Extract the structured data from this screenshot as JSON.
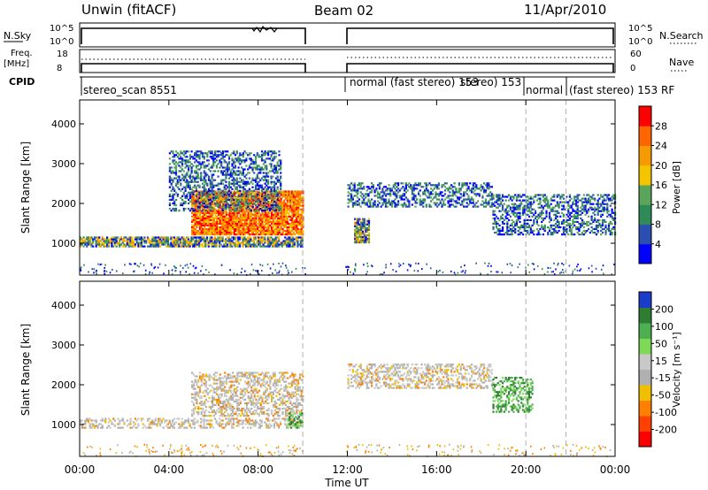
{
  "header": {
    "station": "Unwin (fitACF)",
    "beam": "Beam 02",
    "date": "11/Apr/2010"
  },
  "top_panels": {
    "nsky_label": "N.Sky",
    "nsky_ticks": [
      "10^5",
      "10^0"
    ],
    "nsearch_label": "N.Search",
    "nsearch_ticks": [
      "10^5",
      "10^0"
    ],
    "freq_label_1": "Freq.",
    "freq_label_2": "[MHz]",
    "freq_ticks": [
      "18",
      "8"
    ],
    "nave_label": "Nave",
    "nave_ticks": [
      "60",
      "0"
    ],
    "cpid_label": "CPID"
  },
  "cpid_segments": [
    {
      "label": "stereo_scan 8551"
    },
    {
      "label": "normal (fast stereo) 153"
    },
    {
      "label": "stereo) 153"
    },
    {
      "label": "normal"
    },
    {
      "label": "(fast stereo) 153 RF"
    }
  ],
  "colors": {
    "power": [
      "#0000ff",
      "#2a4fb0",
      "#2e8b57",
      "#5aa55a",
      "#f5c400",
      "#f59a00",
      "#ff6600",
      "#ff0000"
    ],
    "velocity": [
      "#1a3cc8",
      "#2e7d32",
      "#4caf50",
      "#7ed957",
      "#c8c8c8",
      "#b0b0b0",
      "#f0c000",
      "#ff8000",
      "#ff4000",
      "#ff0000"
    ]
  },
  "chart_data": [
    {
      "type": "heatmap",
      "title": "Power",
      "xlabel": "Time UT",
      "ylabel": "Slant Range [km]",
      "x_range_hours": [
        0,
        24
      ],
      "x_ticks": [
        "00:00",
        "04:00",
        "08:00",
        "12:00",
        "16:00",
        "20:00",
        "00:00"
      ],
      "ylim": [
        200,
        4600
      ],
      "y_ticks": [
        1000,
        2000,
        3000,
        4000
      ],
      "colorbar_label": "Power [dB]",
      "colorbar_ticks": [
        "28",
        "24",
        "20",
        "16",
        "12",
        "8",
        "4"
      ],
      "data_gap_hours": [
        10.1,
        11.9
      ],
      "mode_change_hours": [
        10.0,
        20.0,
        21.8
      ],
      "echo_bands": [
        {
          "t_start": 0.0,
          "t_end": 10.0,
          "range_start": 900,
          "range_end": 1150,
          "level": "medium"
        },
        {
          "t_start": 5.0,
          "t_end": 10.0,
          "range_start": 1200,
          "range_end": 2300,
          "level": "strong"
        },
        {
          "t_start": 4.0,
          "t_end": 9.0,
          "range_start": 1800,
          "range_end": 3300,
          "level": "weak"
        },
        {
          "t_start": 12.0,
          "t_end": 18.5,
          "range_start": 1900,
          "range_end": 2500,
          "level": "weak"
        },
        {
          "t_start": 12.3,
          "t_end": 13.0,
          "range_start": 1000,
          "range_end": 1600,
          "level": "medium"
        },
        {
          "t_start": 18.5,
          "t_end": 24.0,
          "range_start": 1200,
          "range_end": 2200,
          "level": "weak"
        }
      ]
    },
    {
      "type": "heatmap",
      "title": "Velocity",
      "xlabel": "Time UT",
      "ylabel": "Slant Range [km]",
      "x_range_hours": [
        0,
        24
      ],
      "x_ticks": [
        "00:00",
        "04:00",
        "08:00",
        "12:00",
        "16:00",
        "20:00",
        "00:00"
      ],
      "ylim": [
        200,
        4600
      ],
      "y_ticks": [
        1000,
        2000,
        3000,
        4000
      ],
      "colorbar_label": "Velocity [m s⁻¹]",
      "colorbar_ticks": [
        "200",
        "100",
        "50",
        "15",
        "-15",
        "-50",
        "-100",
        "-200"
      ],
      "data_gap_hours": [
        10.1,
        11.9
      ],
      "mode_change_hours": [
        10.0,
        20.0,
        21.8
      ],
      "echo_bands": [
        {
          "t_start": 0.0,
          "t_end": 10.0,
          "range_start": 900,
          "range_end": 1150,
          "velocity_class": "near-zero"
        },
        {
          "t_start": 5.0,
          "t_end": 10.0,
          "range_start": 1200,
          "range_end": 2300,
          "velocity_class": "near-zero"
        },
        {
          "t_start": 9.3,
          "t_end": 10.0,
          "range_start": 900,
          "range_end": 1300,
          "velocity_class": "positive"
        },
        {
          "t_start": 12.0,
          "t_end": 18.5,
          "range_start": 1900,
          "range_end": 2500,
          "velocity_class": "near-zero"
        },
        {
          "t_start": 18.5,
          "t_end": 20.3,
          "range_start": 1300,
          "range_end": 2200,
          "velocity_class": "positive"
        }
      ]
    }
  ]
}
